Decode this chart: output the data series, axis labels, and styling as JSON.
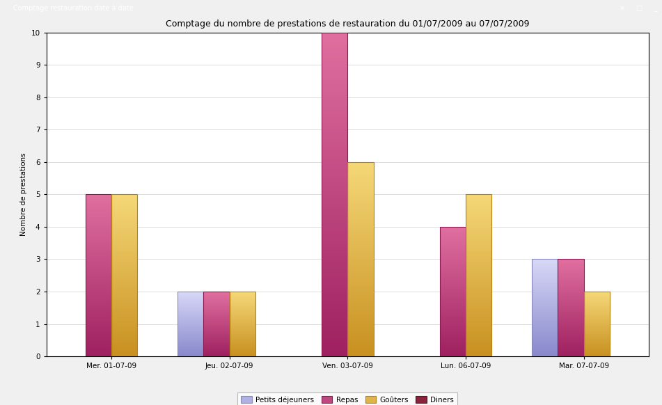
{
  "title": "Comptage du nombre de prestations de restauration du 01/07/2009 au 07/07/2009",
  "window_title": "Comptage restauration date à date",
  "ylabel": "Nombre de prestations",
  "categories": [
    "Mer. 01-07-09",
    "Jeu. 02-07-09",
    "Ven. 03-07-09",
    "Lun. 06-07-09",
    "Mar. 07-07-09"
  ],
  "series": {
    "Petits déjeuners": [
      0,
      2,
      0,
      0,
      3
    ],
    "Repas": [
      5,
      2,
      10,
      4,
      3
    ],
    "Goûters": [
      5,
      2,
      6,
      5,
      2
    ],
    "Diners": [
      0,
      0,
      0,
      0,
      0
    ]
  },
  "colors_top": {
    "Petits déjeuners": "#d8d8f8",
    "Repas": "#e070a0",
    "Goûters": "#f5d878",
    "Diners": "#a03050"
  },
  "colors_bottom": {
    "Petits déjeuners": "#8888cc",
    "Repas": "#9e2060",
    "Goûters": "#c89020",
    "Diners": "#701828"
  },
  "colors_edge": {
    "Petits déjeuners": "#8888bb",
    "Repas": "#8c1850",
    "Goûters": "#b88010",
    "Diners": "#601020"
  },
  "ylim": [
    0,
    10
  ],
  "yticks": [
    0,
    1,
    2,
    3,
    4,
    5,
    6,
    7,
    8,
    9,
    10
  ],
  "bar_width": 0.22,
  "legend_labels": [
    "Petits déjeuners",
    "Repas",
    "Goûters",
    "Diners"
  ],
  "background_color": "#ffffff",
  "plot_bg": "#ffffff",
  "title_fontsize": 9,
  "axis_fontsize": 7.5,
  "legend_fontsize": 7.5,
  "figsize": [
    9.51,
    5.82
  ],
  "dpi": 100
}
